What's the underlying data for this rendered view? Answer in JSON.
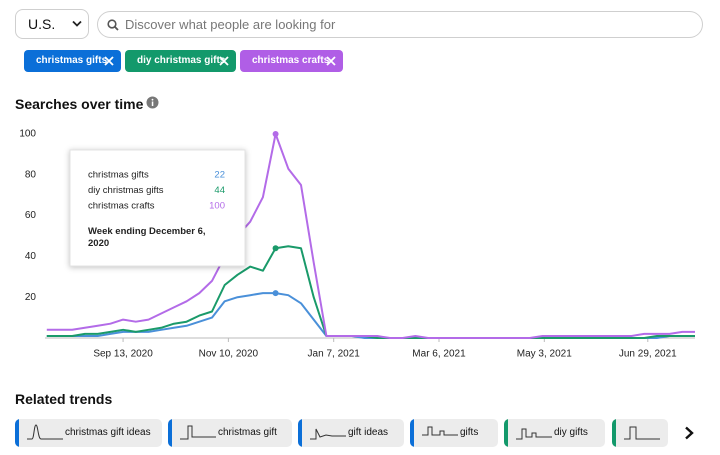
{
  "search": {
    "country": "U.S.",
    "placeholder": "Discover what people are looking for"
  },
  "chart_data": {
    "type": "line",
    "title": "Searches over time",
    "x": [
      "2020-08-02",
      "2020-08-09",
      "2020-08-16",
      "2020-08-23",
      "2020-08-30",
      "2020-09-06",
      "2020-09-13",
      "2020-09-20",
      "2020-09-27",
      "2020-10-04",
      "2020-10-11",
      "2020-10-18",
      "2020-10-25",
      "2020-11-01",
      "2020-11-08",
      "2020-11-15",
      "2020-11-22",
      "2020-11-29",
      "2020-12-06",
      "2020-12-13",
      "2020-12-20",
      "2020-12-27",
      "2021-01-03",
      "2021-01-10",
      "2021-01-17",
      "2021-01-24",
      "2021-01-31",
      "2021-02-07",
      "2021-02-14",
      "2021-02-21",
      "2021-02-28",
      "2021-03-07",
      "2021-03-14",
      "2021-03-21",
      "2021-03-28",
      "2021-04-04",
      "2021-04-11",
      "2021-04-18",
      "2021-04-25",
      "2021-05-02",
      "2021-05-09",
      "2021-05-16",
      "2021-05-23",
      "2021-05-30",
      "2021-06-06",
      "2021-06-13",
      "2021-06-20",
      "2021-06-27",
      "2021-07-04",
      "2021-07-11",
      "2021-07-18",
      "2021-07-25"
    ],
    "series": [
      {
        "name": "christmas gifts",
        "color": "#4a90d9",
        "chip_color": "#0b6fd8",
        "values": [
          1,
          1,
          1,
          1,
          1,
          2,
          3,
          3,
          3,
          4,
          5,
          6,
          8,
          10,
          18,
          20,
          21,
          22,
          22,
          21,
          17,
          9,
          1,
          1,
          1,
          0,
          0,
          0,
          0,
          0,
          0,
          0,
          0,
          0,
          0,
          0,
          0,
          0,
          0,
          0,
          0,
          0,
          0,
          0,
          0,
          0,
          0,
          0,
          0,
          1,
          1,
          1
        ]
      },
      {
        "name": "diy christmas gifts",
        "color": "#1a9a6a",
        "chip_color": "#13996b",
        "values": [
          1,
          1,
          1,
          2,
          2,
          3,
          4,
          3,
          4,
          5,
          7,
          8,
          11,
          13,
          26,
          31,
          35,
          33,
          44,
          45,
          44,
          20,
          1,
          1,
          1,
          1,
          0,
          0,
          0,
          0,
          0,
          0,
          0,
          0,
          0,
          0,
          0,
          0,
          0,
          0,
          0,
          0,
          0,
          0,
          0,
          0,
          0,
          0,
          1,
          1,
          1,
          1
        ]
      },
      {
        "name": "christmas crafts",
        "color": "#b36be8",
        "chip_color": "#b05ee6",
        "values": [
          4,
          4,
          4,
          5,
          6,
          7,
          9,
          8,
          9,
          12,
          15,
          18,
          22,
          28,
          40,
          50,
          57,
          69,
          100,
          83,
          75,
          37,
          1,
          1,
          1,
          1,
          1,
          0,
          0,
          1,
          0,
          0,
          0,
          0,
          0,
          0,
          0,
          0,
          0,
          1,
          1,
          1,
          1,
          1,
          1,
          1,
          1,
          2,
          2,
          2,
          3,
          3
        ]
      }
    ],
    "xlim": [
      "2020-08-01",
      "2021-07-25"
    ],
    "xticks": [
      {
        "value": "2020-09-13",
        "label": "Sep 13, 2020"
      },
      {
        "value": "2020-11-10",
        "label": "Nov 10, 2020"
      },
      {
        "value": "2021-01-07",
        "label": "Jan 7, 2021"
      },
      {
        "value": "2021-03-06",
        "label": "Mar 6, 2021"
      },
      {
        "value": "2021-05-03",
        "label": "May 3, 2021"
      },
      {
        "value": "2021-06-29",
        "label": "Jun 29, 2021"
      }
    ],
    "ylim": [
      0,
      100
    ],
    "yticks": [
      20,
      40,
      60,
      80,
      100
    ],
    "grid": false,
    "tooltip": {
      "index": 18,
      "title": "Week ending December 6, 2020"
    }
  },
  "related_trends": {
    "title": "Related trends",
    "items": [
      {
        "label": "christmas gift ideas",
        "color": "#0b6fd8"
      },
      {
        "label": "christmas gift",
        "color": "#0b6fd8"
      },
      {
        "label": "gift ideas",
        "color": "#0b6fd8"
      },
      {
        "label": "gifts",
        "color": "#0b6fd8"
      },
      {
        "label": "diy gifts",
        "color": "#13996b"
      }
    ]
  }
}
